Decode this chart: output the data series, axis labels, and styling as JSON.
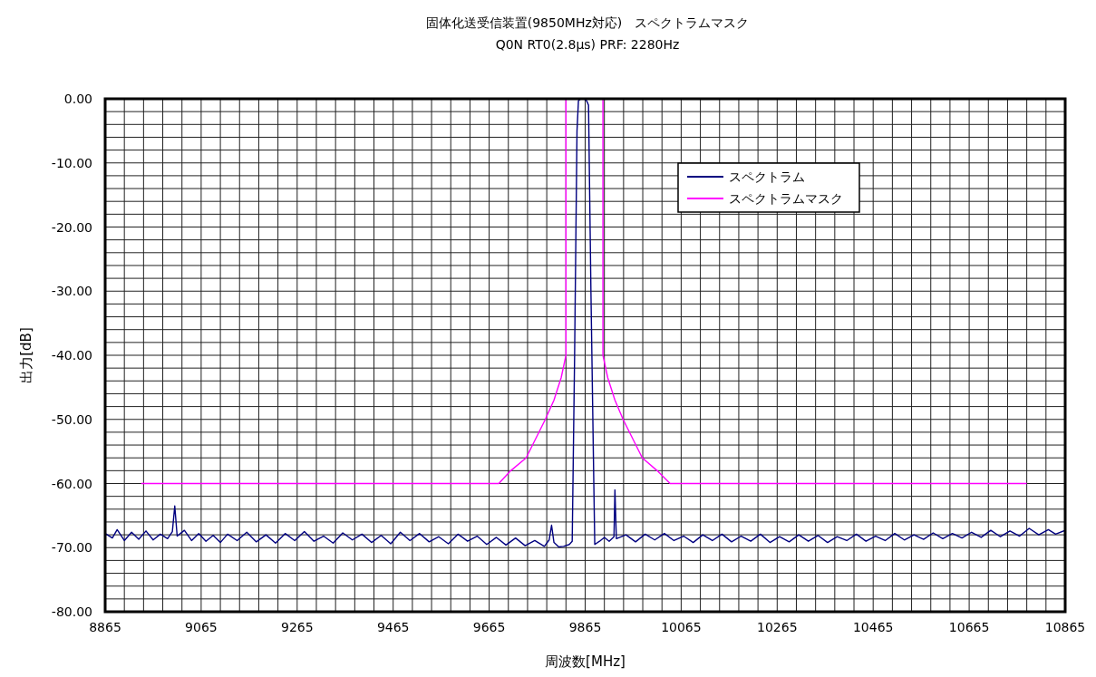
{
  "chart_data": {
    "type": "line",
    "title": "固体化送受信装置(9850MHz対応)　スペクトラムマスク",
    "subtitle": "Q0N  RT0(2.8μs) PRF: 2280Hz",
    "xlabel": "周波数[MHz]",
    "ylabel": "出力[dB]",
    "xlim": [
      8865,
      10865
    ],
    "ylim": [
      -80,
      0
    ],
    "xticks": [
      8865,
      {
        "value": 8905,
        "label": null
      },
      {
        "value": 8945,
        "label": null
      },
      {
        "value": 8985,
        "label": null
      },
      {
        "value": 9025,
        "label": null
      },
      9065,
      {
        "value": 9105,
        "label": null
      },
      {
        "value": 9145,
        "label": null
      },
      {
        "value": 9185,
        "label": null
      },
      {
        "value": 9225,
        "label": null
      },
      9265,
      {
        "value": 9305,
        "label": null
      },
      {
        "value": 9345,
        "label": null
      },
      {
        "value": 9385,
        "label": null
      },
      {
        "value": 9425,
        "label": null
      },
      9465,
      {
        "value": 9505,
        "label": null
      },
      {
        "value": 9545,
        "label": null
      },
      {
        "value": 9585,
        "label": null
      },
      {
        "value": 9625,
        "label": null
      },
      9665,
      {
        "value": 9705,
        "label": null
      },
      {
        "value": 9745,
        "label": null
      },
      {
        "value": 9785,
        "label": null
      },
      {
        "value": 9825,
        "label": null
      },
      9865,
      {
        "value": 9905,
        "label": null
      },
      {
        "value": 9945,
        "label": null
      },
      {
        "value": 9985,
        "label": null
      },
      {
        "value": 10025,
        "label": null
      },
      10065,
      {
        "value": 10105,
        "label": null
      },
      {
        "value": 10145,
        "label": null
      },
      {
        "value": 10185,
        "label": null
      },
      {
        "value": 10225,
        "label": null
      },
      10265,
      {
        "value": 10305,
        "label": null
      },
      {
        "value": 10345,
        "label": null
      },
      {
        "value": 10385,
        "label": null
      },
      {
        "value": 10425,
        "label": null
      },
      10465,
      {
        "value": 10505,
        "label": null
      },
      {
        "value": 10545,
        "label": null
      },
      {
        "value": 10585,
        "label": null
      },
      {
        "value": 10625,
        "label": null
      },
      10665,
      {
        "value": 10705,
        "label": null
      },
      {
        "value": 10745,
        "label": null
      },
      {
        "value": 10785,
        "label": null
      },
      {
        "value": 10825,
        "label": null
      },
      10865
    ],
    "yticks": [
      {
        "value": -80,
        "label": "-80.00"
      },
      {
        "value": -78,
        "label": null
      },
      {
        "value": -76,
        "label": null
      },
      {
        "value": -74,
        "label": null
      },
      {
        "value": -72,
        "label": null
      },
      {
        "value": -70,
        "label": "-70.00"
      },
      {
        "value": -68,
        "label": null
      },
      {
        "value": -66,
        "label": null
      },
      {
        "value": -64,
        "label": null
      },
      {
        "value": -62,
        "label": null
      },
      {
        "value": -60,
        "label": "-60.00"
      },
      {
        "value": -58,
        "label": null
      },
      {
        "value": -56,
        "label": null
      },
      {
        "value": -54,
        "label": null
      },
      {
        "value": -52,
        "label": null
      },
      {
        "value": -50,
        "label": "-50.00"
      },
      {
        "value": -48,
        "label": null
      },
      {
        "value": -46,
        "label": null
      },
      {
        "value": -44,
        "label": null
      },
      {
        "value": -42,
        "label": null
      },
      {
        "value": -40,
        "label": "-40.00"
      },
      {
        "value": -38,
        "label": null
      },
      {
        "value": -36,
        "label": null
      },
      {
        "value": -34,
        "label": null
      },
      {
        "value": -32,
        "label": null
      },
      {
        "value": -30,
        "label": "-30.00"
      },
      {
        "value": -28,
        "label": null
      },
      {
        "value": -26,
        "label": null
      },
      {
        "value": -24,
        "label": null
      },
      {
        "value": -22,
        "label": null
      },
      {
        "value": -20,
        "label": "-20.00"
      },
      {
        "value": -18,
        "label": null
      },
      {
        "value": -16,
        "label": null
      },
      {
        "value": -14,
        "label": null
      },
      {
        "value": -12,
        "label": null
      },
      {
        "value": -10,
        "label": "-10.00"
      },
      {
        "value": -8,
        "label": null
      },
      {
        "value": -6,
        "label": null
      },
      {
        "value": -4,
        "label": null
      },
      {
        "value": -2,
        "label": null
      },
      {
        "value": 0,
        "label": "0.00"
      }
    ],
    "grid": true,
    "legend": "right",
    "marker": "none",
    "line_style": "solid",
    "series": [
      {
        "name": "スペクトラム",
        "color": "#000080",
        "x": [
          8865,
          8880,
          8890,
          8905,
          8920,
          8935,
          8950,
          8965,
          8980,
          8995,
          9005,
          9010,
          9015,
          9030,
          9045,
          9060,
          9075,
          9090,
          9105,
          9120,
          9140,
          9160,
          9180,
          9200,
          9220,
          9240,
          9260,
          9280,
          9300,
          9320,
          9340,
          9360,
          9380,
          9400,
          9420,
          9440,
          9460,
          9480,
          9500,
          9520,
          9540,
          9560,
          9580,
          9600,
          9620,
          9640,
          9660,
          9680,
          9700,
          9720,
          9740,
          9760,
          9780,
          9790,
          9795,
          9800,
          9810,
          9820,
          9832,
          9838,
          9843,
          9848,
          9851,
          9856,
          9862,
          9868,
          9872,
          9877,
          9883,
          9885,
          9895,
          9905,
          9915,
          9925,
          9927,
          9930,
          9950,
          9970,
          9990,
          10010,
          10030,
          10050,
          10070,
          10090,
          10110,
          10130,
          10150,
          10170,
          10190,
          10210,
          10230,
          10250,
          10270,
          10290,
          10310,
          10330,
          10350,
          10370,
          10390,
          10410,
          10430,
          10450,
          10470,
          10490,
          10510,
          10530,
          10550,
          10570,
          10590,
          10610,
          10630,
          10650,
          10670,
          10690,
          10710,
          10730,
          10750,
          10770,
          10790,
          10810,
          10830,
          10845,
          10865
        ],
        "values": [
          -67.8,
          -68.5,
          -67.2,
          -68.9,
          -67.6,
          -68.7,
          -67.4,
          -68.8,
          -67.9,
          -68.6,
          -67.5,
          -63.5,
          -68.2,
          -67.3,
          -68.9,
          -67.8,
          -69.0,
          -68.1,
          -69.2,
          -67.9,
          -68.9,
          -67.6,
          -69.1,
          -68.0,
          -69.3,
          -67.8,
          -68.9,
          -67.5,
          -69.0,
          -68.2,
          -69.3,
          -67.7,
          -68.8,
          -67.9,
          -69.2,
          -68.1,
          -69.4,
          -67.6,
          -68.9,
          -67.8,
          -69.1,
          -68.3,
          -69.4,
          -67.9,
          -69.0,
          -68.2,
          -69.5,
          -68.4,
          -69.6,
          -68.5,
          -69.7,
          -68.9,
          -69.8,
          -68.8,
          -66.5,
          -69.2,
          -69.9,
          -69.8,
          -69.5,
          -69.0,
          -40,
          -5,
          -0.3,
          0,
          0,
          -0.3,
          -1,
          -30,
          -60,
          -69.5,
          -69.0,
          -68.4,
          -69.0,
          -68.3,
          -61,
          -68.6,
          -68.0,
          -69.1,
          -67.9,
          -68.8,
          -67.8,
          -68.9,
          -68.2,
          -69.2,
          -68.0,
          -68.9,
          -67.9,
          -69.1,
          -68.2,
          -69.0,
          -67.9,
          -69.2,
          -68.3,
          -69.1,
          -68.0,
          -69.0,
          -68.1,
          -69.2,
          -68.3,
          -68.9,
          -67.9,
          -69.0,
          -68.2,
          -68.9,
          -67.8,
          -68.8,
          -68.0,
          -68.7,
          -67.7,
          -68.6,
          -67.8,
          -68.5,
          -67.6,
          -68.4,
          -67.3,
          -68.3,
          -67.4,
          -68.2,
          -67.0,
          -68.0,
          -67.2,
          -67.9,
          -67.3
        ]
      },
      {
        "name": "スペクトラムマスク",
        "color": "#ff00ff",
        "x": [
          8940,
          9685,
          9710,
          9742,
          9762,
          9782,
          9800,
          9815,
          9825,
          9825,
          9902,
          9902,
          9912,
          9927,
          9944,
          9964,
          9984,
          10015,
          10042,
          10785
        ],
        "values": [
          -60,
          -60,
          -58,
          -56,
          -53,
          -50,
          -47,
          -43.5,
          -40,
          0,
          0,
          -40,
          -43.5,
          -47,
          -50,
          -53,
          -56,
          -58,
          -60,
          -60
        ]
      }
    ]
  }
}
